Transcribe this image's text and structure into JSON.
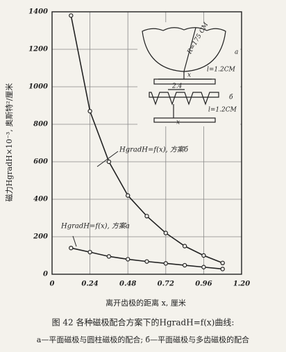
{
  "chart_data": {
    "type": "line",
    "x_label": "离开齿极的距离 x, 厘米",
    "y_label": "磁力HgradH×10⁻³, 奥斯特²/厘米",
    "x": [
      0.12,
      0.24,
      0.36,
      0.48,
      0.6,
      0.72,
      0.84,
      0.96,
      1.08
    ],
    "series": [
      {
        "name": "HgradH=f(x), 方案б",
        "color": "#222222",
        "values": [
          1380,
          870,
          600,
          420,
          310,
          220,
          150,
          100,
          60
        ]
      },
      {
        "name": "HgradH=f(x), 方案a",
        "color": "#222222",
        "values": [
          140,
          118,
          95,
          80,
          68,
          58,
          48,
          38,
          28
        ]
      }
    ],
    "xlim": [
      0,
      1.2
    ],
    "xticks": [
      0,
      0.24,
      0.48,
      0.72,
      0.96,
      {
        "value": 1.2,
        "label": "1.20"
      }
    ],
    "ylim": [
      0,
      1400
    ],
    "yticks": [
      0,
      200,
      400,
      600,
      800,
      1000,
      1200,
      1400
    ],
    "grid": true,
    "inset_labels": [
      "R=175 CM",
      "a",
      "l=1.2CM",
      "x",
      "2.4",
      "б",
      "l=1.2CM",
      "x"
    ],
    "caption": [
      "图 42 各种磁极配合方案下的HgradH=f(x)曲线:",
      "a—平面磁极与圆柱磁极的配合; б—平面磁极与多齿磁极的配合"
    ]
  }
}
